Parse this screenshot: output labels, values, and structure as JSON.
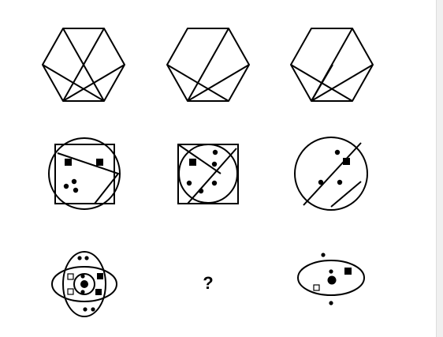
{
  "puzzle": {
    "missing_cell_label": "?"
  }
}
